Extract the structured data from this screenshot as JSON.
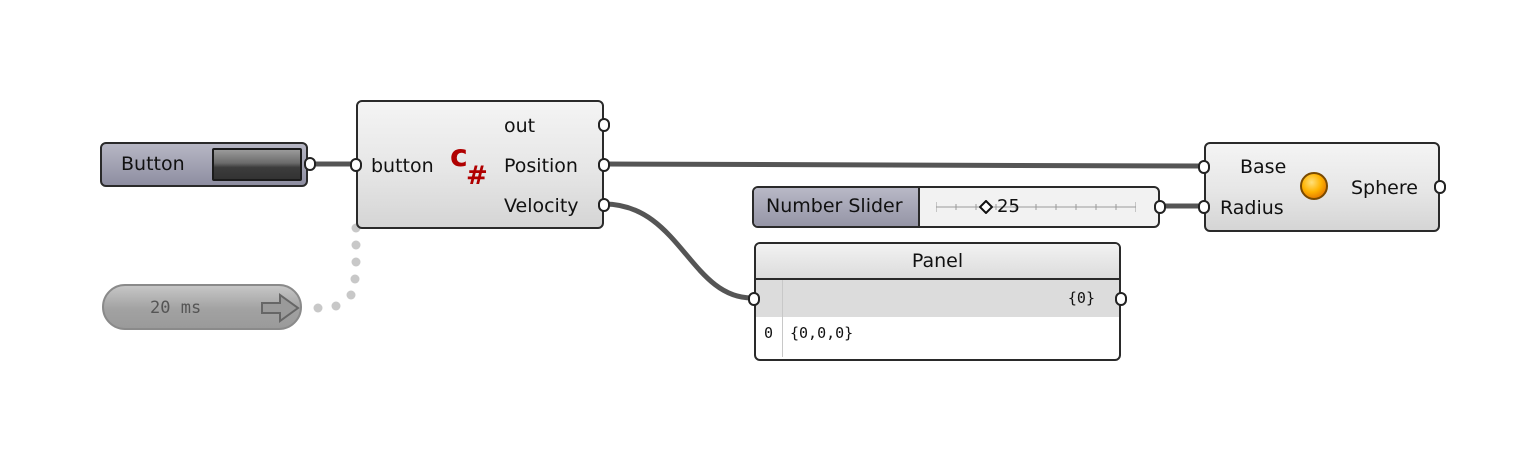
{
  "button_component": {
    "label": "Button"
  },
  "timer": {
    "interval": "20 ms"
  },
  "csharp_component": {
    "icon_text": "C#",
    "input": "button",
    "outputs": [
      "out",
      "Position",
      "Velocity"
    ]
  },
  "slider": {
    "label": "Number Slider",
    "value": "25",
    "value_fraction": 0.25
  },
  "panel": {
    "title": "Panel",
    "header_value": "{0}",
    "row_index": "0",
    "row_value": "{0,0,0}"
  },
  "sphere_component": {
    "inputs": [
      "Base",
      "Radius"
    ],
    "output": "Sphere"
  },
  "colors": {
    "wire": "#555555",
    "timer_dots": "#c8c8c8",
    "csharp_icon": "#b00000",
    "sphere": "#ffb300"
  }
}
